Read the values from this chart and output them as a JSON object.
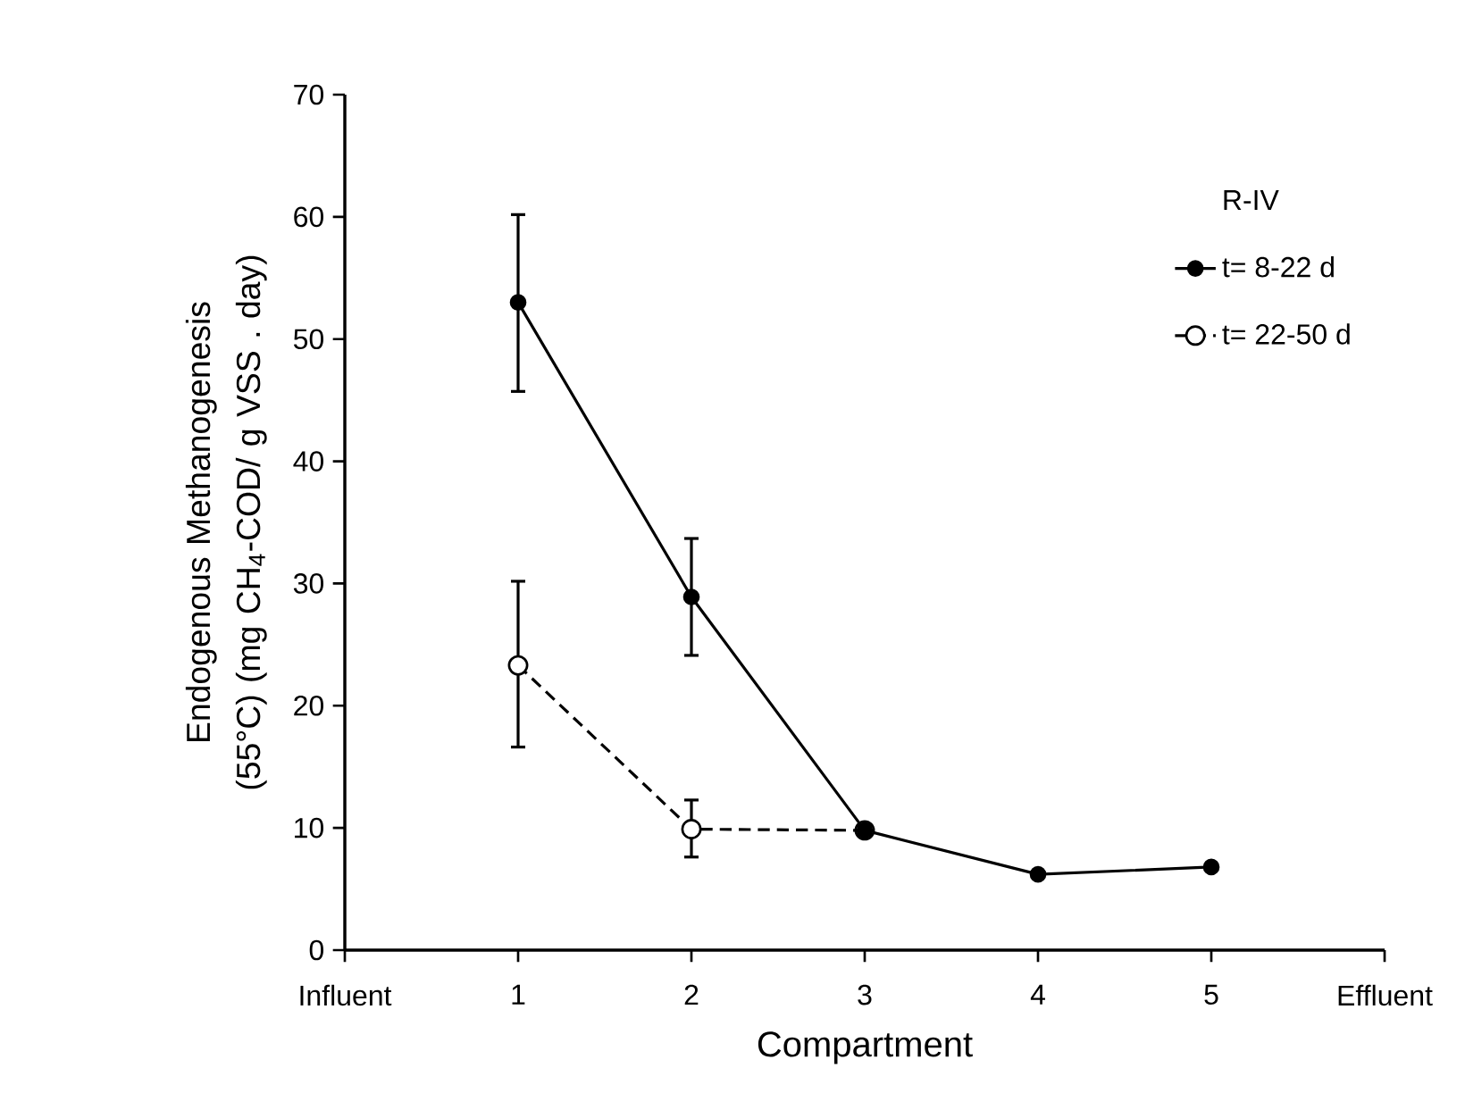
{
  "chart_data": {
    "type": "line",
    "xlabel": "Compartment",
    "ylabel": "Endogenous Methanogenesis (55°C) (mg CH$_{4}$-COD/ g VSS . day)",
    "legend_title": "R-IV",
    "categories": [
      "Influent",
      "1",
      "2",
      "3",
      "4",
      "5",
      "Effluent"
    ],
    "series": [
      {
        "name": "t= 8-22 d",
        "color": "#000000",
        "line_style": "solid",
        "values": [
          null,
          53.0,
          28.9,
          9.8,
          6.2,
          6.8,
          null
        ],
        "errors": [
          null,
          [
            45.6,
            60.3
          ],
          [
            24.0,
            33.8
          ],
          null,
          null,
          null,
          null
        ]
      },
      {
        "name": "t= 22-50 d",
        "color": "#000000",
        "line_style": "dashed",
        "values": [
          null,
          23.3,
          9.9,
          9.8,
          null,
          null,
          null
        ],
        "errors": [
          null,
          [
            16.5,
            30.3
          ],
          [
            7.5,
            12.4
          ],
          null,
          null,
          null,
          null
        ]
      }
    ],
    "ylim": [
      0,
      70
    ],
    "yticks": [
      0,
      10,
      20,
      30,
      40,
      50,
      60,
      70
    ],
    "marker": "circle",
    "legend": "top right",
    "grid": false
  }
}
